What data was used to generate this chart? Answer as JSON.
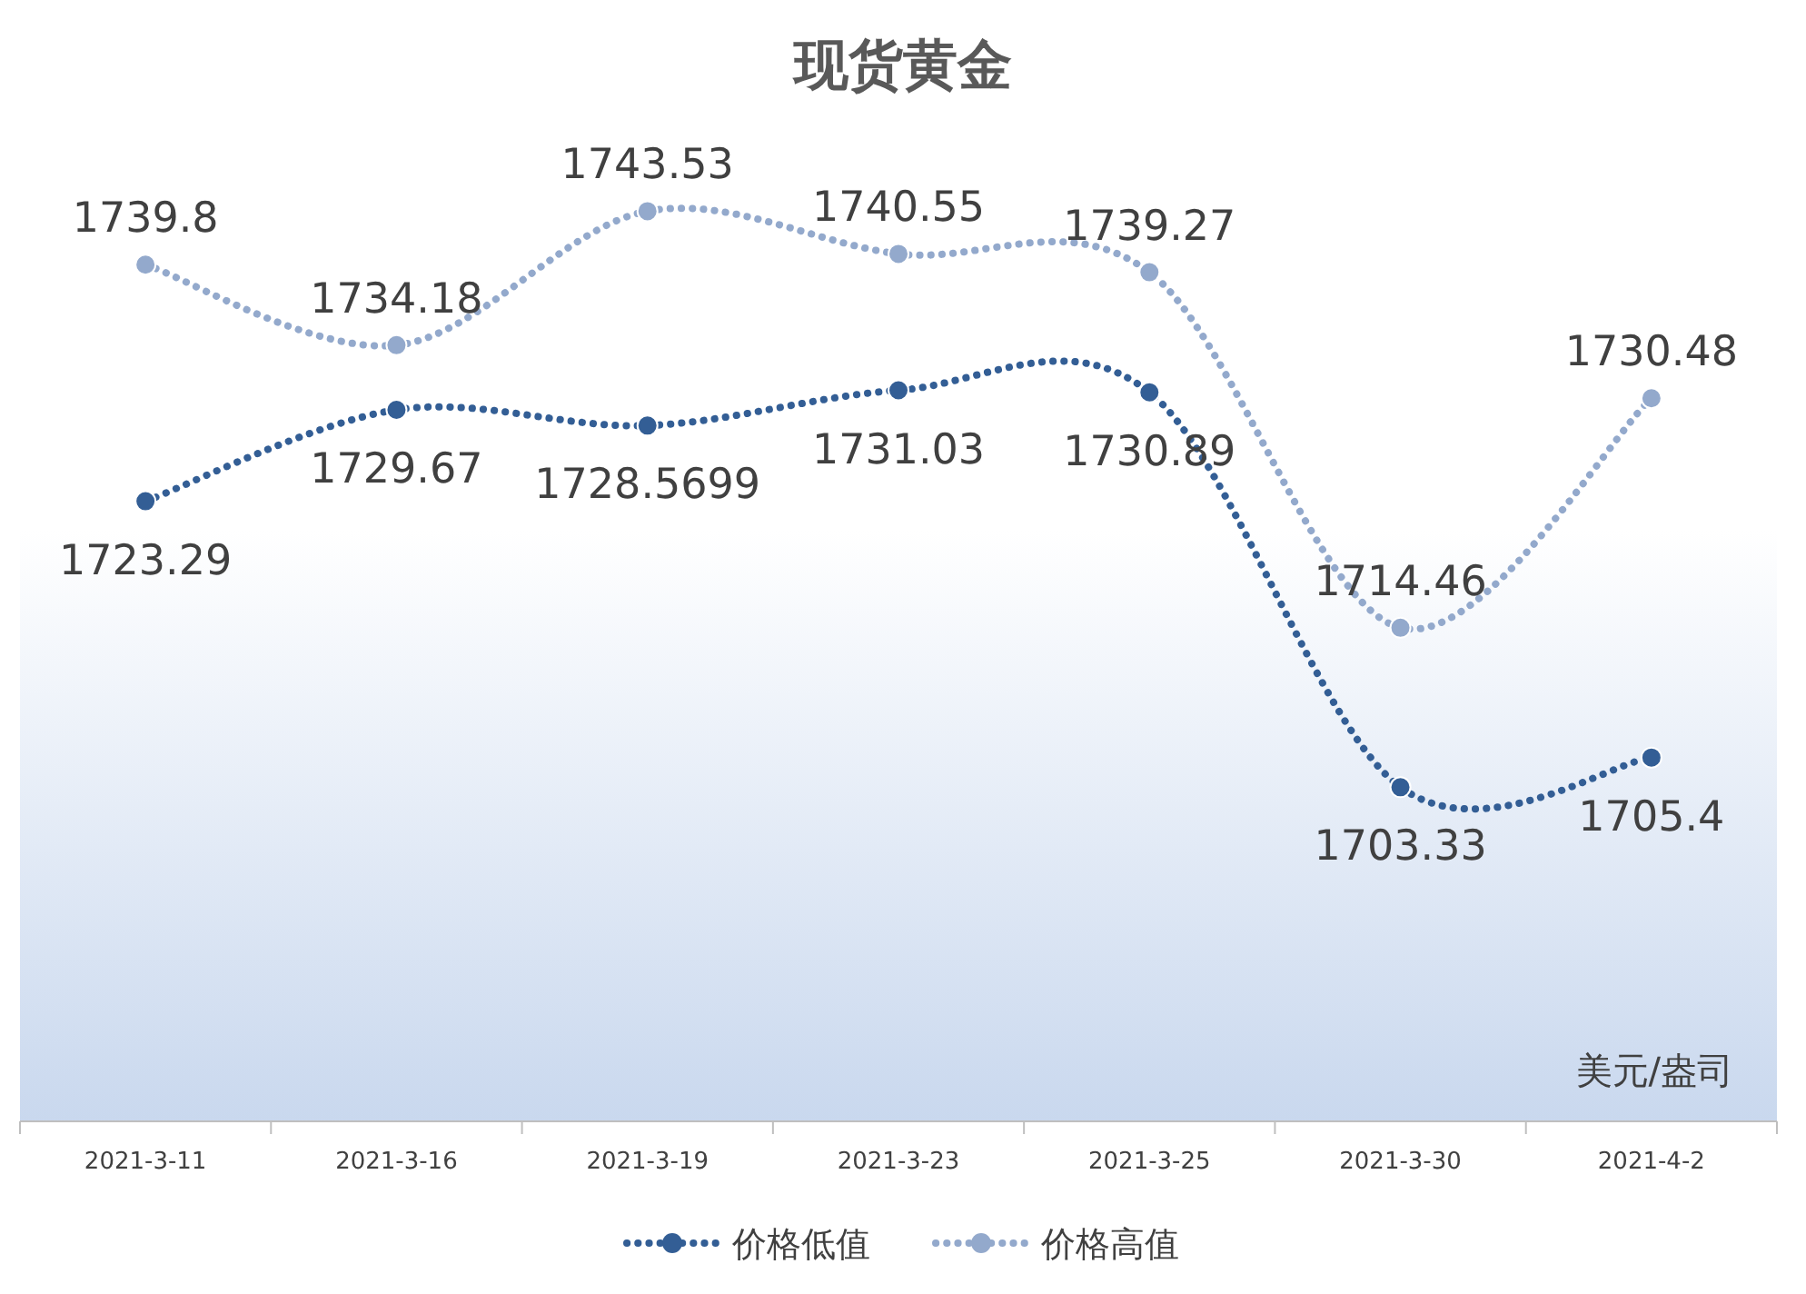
{
  "chart_data": {
    "type": "line",
    "title": "现货黄金",
    "annotations": [
      "美元/盎司"
    ],
    "categories": [
      "2021-3-11",
      "2021-3-16",
      "2021-3-19",
      "2021-3-23",
      "2021-3-25",
      "2021-3-30",
      "2021-4-2"
    ],
    "series": [
      {
        "name": "价格低值",
        "color": "#335e95",
        "values": [
          1723.29,
          1729.67,
          1728.5699,
          1731.03,
          1730.89,
          1703.33,
          1705.4
        ]
      },
      {
        "name": "价格高值",
        "color": "#93a9cc",
        "values": [
          1739.8,
          1734.18,
          1743.53,
          1740.55,
          1739.27,
          1714.46,
          1730.48
        ]
      }
    ],
    "data_labels": true,
    "legend": "bottom",
    "marker": "circle",
    "line_style": "dotted"
  }
}
